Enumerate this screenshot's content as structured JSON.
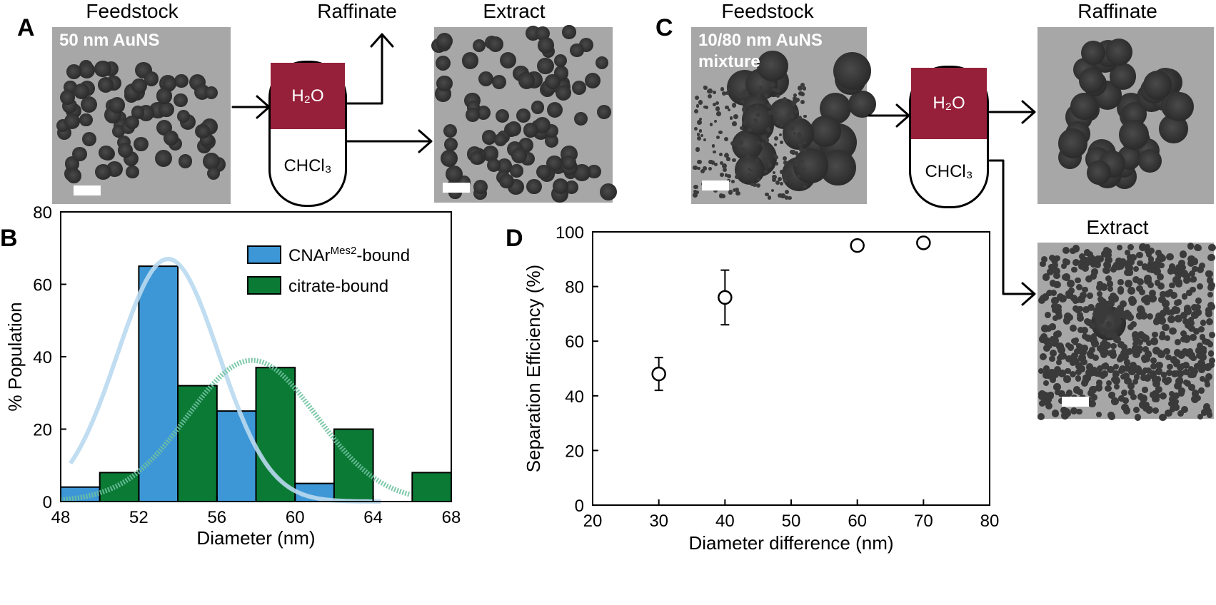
{
  "panels": {
    "A": {
      "letter": "A",
      "feedstock_title": "Feedstock",
      "feedstock_label": "50 nm AuNS",
      "raffinate_title": "Raffinate",
      "extract_title": "Extract",
      "phase_top": "H₂O",
      "phase_bottom": "CHCl₃"
    },
    "B": {
      "letter": "B"
    },
    "C": {
      "letter": "C",
      "feedstock_title": "Feedstock",
      "feedstock_label": "10/80 nm AuNS\nmixture",
      "raffinate_title": "Raffinate",
      "extract_title": "Extract",
      "phase_top": "H₂O",
      "phase_bottom": "CHCl₃"
    },
    "D": {
      "letter": "D"
    }
  },
  "colors": {
    "water_phase": "#96203a",
    "series_cnar": "#3d97d6",
    "series_citrate": "#0b7a35",
    "fit_cnar": "#b9d9ef",
    "fit_citrate": "#6fc2a0"
  },
  "chart_data": [
    {
      "id": "B",
      "type": "bar",
      "xlabel": "Diameter (nm)",
      "ylabel": "% Population",
      "xlim": [
        48,
        68
      ],
      "ylim": [
        0,
        80
      ],
      "xticks": [
        48,
        52,
        56,
        60,
        64,
        68
      ],
      "yticks": [
        0,
        20,
        40,
        60,
        80
      ],
      "legend_position": "top-right",
      "series": [
        {
          "name": "CNAr",
          "name_superscript": "Mes2",
          "name_suffix": "-bound",
          "bins": [
            [
              48,
              50
            ],
            [
              52,
              54
            ],
            [
              56,
              58
            ],
            [
              60,
              62
            ]
          ],
          "values": [
            4,
            65,
            25,
            5
          ]
        },
        {
          "name": "citrate-bound",
          "bins": [
            [
              50,
              52
            ],
            [
              54,
              56
            ],
            [
              58,
              60
            ],
            [
              62,
              64
            ],
            [
              66,
              68
            ]
          ],
          "values": [
            8,
            32,
            37,
            20,
            8
          ]
        }
      ],
      "fits": [
        {
          "series": "CNAr-bound",
          "type": "gaussian",
          "mean": 53.5,
          "peak": 67,
          "range": [
            48.5,
            64.5
          ]
        },
        {
          "series": "citrate-bound",
          "type": "gaussian",
          "mean": 57.8,
          "peak": 39,
          "range": [
            48,
            66
          ]
        }
      ]
    },
    {
      "id": "D",
      "type": "scatter",
      "xlabel": "Diameter difference (nm)",
      "ylabel": "Separation Efficiency (%)",
      "xlim": [
        20,
        80
      ],
      "ylim": [
        0,
        100
      ],
      "xticks": [
        20,
        30,
        40,
        50,
        60,
        70,
        80
      ],
      "yticks": [
        0,
        20,
        40,
        60,
        80,
        100
      ],
      "grid": false,
      "points": [
        {
          "x": 30,
          "y": 48,
          "err": 6
        },
        {
          "x": 40,
          "y": 76,
          "err": 10
        },
        {
          "x": 60,
          "y": 95,
          "err": 1
        },
        {
          "x": 70,
          "y": 96,
          "err": 1
        }
      ]
    }
  ]
}
